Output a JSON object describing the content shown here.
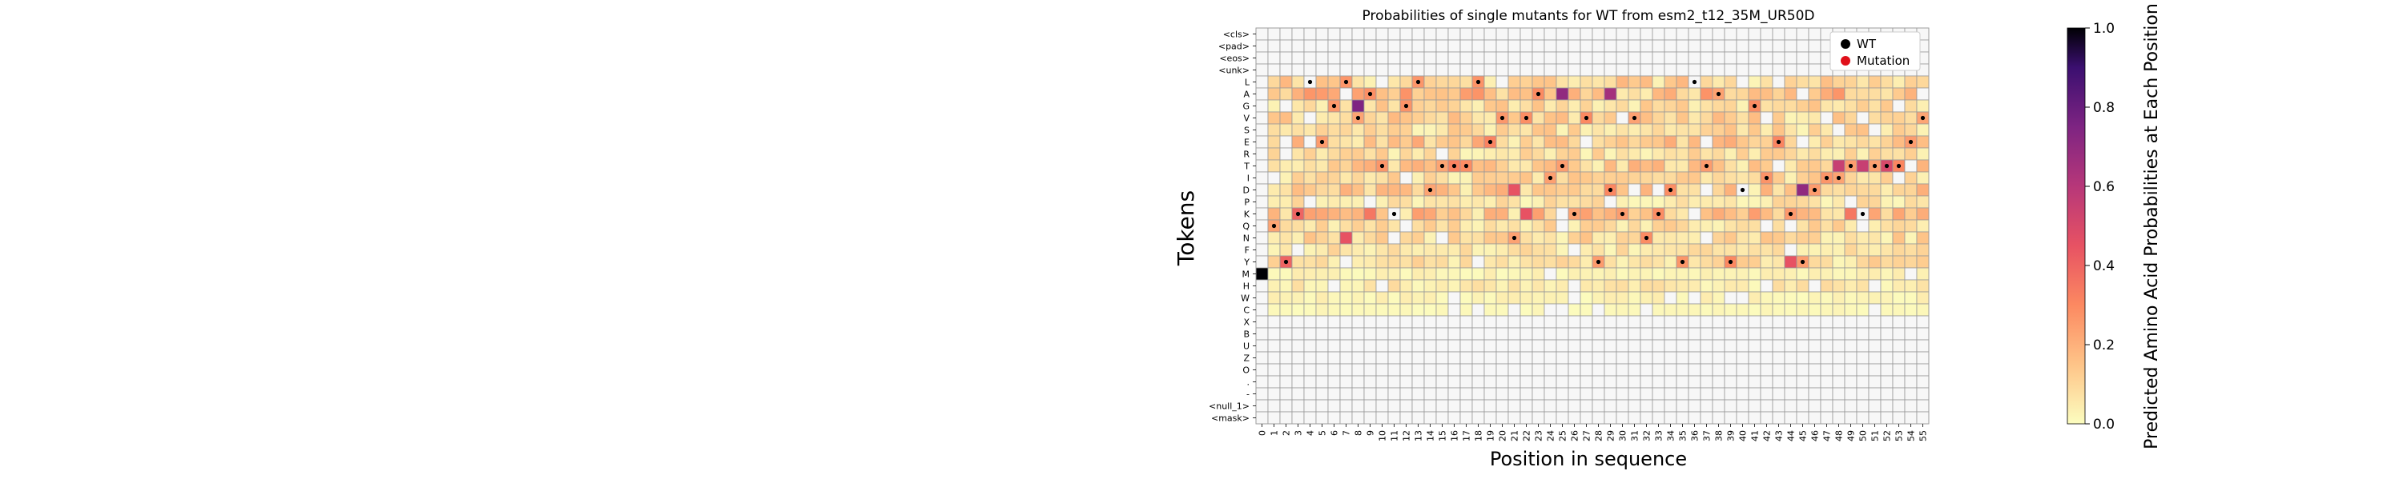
{
  "chart_data": {
    "type": "heatmap",
    "title": "Probabilities of single mutants for WT from esm2_t12_35M_UR50D",
    "xlabel": "Position in sequence",
    "ylabel": "Tokens",
    "colorbar_label": "Predicted Amino Acid Probabilities at Each Position",
    "colormap": "magma_r",
    "vmin": 0.0,
    "vmax": 1.0,
    "colorbar_ticks": [
      "0.0",
      "0.2",
      "0.4",
      "0.6",
      "0.8",
      "1.0"
    ],
    "tokens": [
      "<cls>",
      "<pad>",
      "<eos>",
      "<unk>",
      "L",
      "A",
      "G",
      "V",
      "S",
      "E",
      "R",
      "T",
      "I",
      "D",
      "P",
      "K",
      "Q",
      "N",
      "F",
      "Y",
      "M",
      "H",
      "W",
      "C",
      "X",
      "B",
      "U",
      "Z",
      "O",
      ".",
      "-",
      "<null_1>",
      "<mask>"
    ],
    "positions": [
      "0",
      "1",
      "2",
      "3",
      "4",
      "5",
      "6",
      "7",
      "8",
      "9",
      "10",
      "11",
      "12",
      "13",
      "14",
      "15",
      "16",
      "17",
      "18",
      "19",
      "20",
      "21",
      "22",
      "23",
      "24",
      "25",
      "26",
      "27",
      "28",
      "29",
      "30",
      "31",
      "32",
      "33",
      "34",
      "35",
      "36",
      "37",
      "38",
      "39",
      "40",
      "41",
      "42",
      "43",
      "44",
      "45",
      "46",
      "47",
      "48",
      "49",
      "50",
      "51",
      "52",
      "53",
      "54",
      "55"
    ],
    "legend": [
      {
        "label": "WT",
        "color": "#000000"
      },
      {
        "label": "Mutation",
        "color": "#e0101a"
      }
    ],
    "wt_sequence": "MQYKLEGLVATKGLDTTTLEVNVAITKVYDKVNKDYLTAYDGIEKYDIITKTTTEV",
    "high_values": [
      {
        "pos": 0,
        "token": "M",
        "value": 1.0
      },
      {
        "pos": 2,
        "token": "Y",
        "value": 0.4
      },
      {
        "pos": 3,
        "token": "K",
        "value": 0.4
      },
      {
        "pos": 7,
        "token": "N",
        "value": 0.45
      },
      {
        "pos": 8,
        "token": "G",
        "value": 0.75
      },
      {
        "pos": 9,
        "token": "K",
        "value": 0.35
      },
      {
        "pos": 25,
        "token": "A",
        "value": 0.7
      },
      {
        "pos": 29,
        "token": "A",
        "value": 0.65
      },
      {
        "pos": 21,
        "token": "D",
        "value": 0.45
      },
      {
        "pos": 22,
        "token": "K",
        "value": 0.45
      },
      {
        "pos": 44,
        "token": "Y",
        "value": 0.45
      },
      {
        "pos": 45,
        "token": "D",
        "value": 0.7
      },
      {
        "pos": 48,
        "token": "T",
        "value": 0.55
      },
      {
        "pos": 50,
        "token": "T",
        "value": 0.55
      },
      {
        "pos": 52,
        "token": "T",
        "value": 0.5
      },
      {
        "pos": 49,
        "token": "K",
        "value": 0.35
      }
    ]
  }
}
